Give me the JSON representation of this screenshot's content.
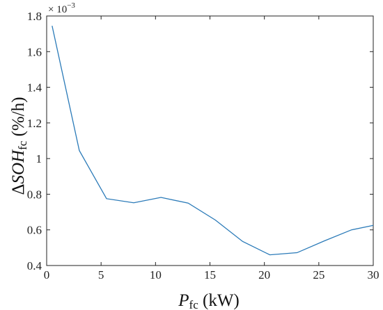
{
  "chart_data": {
    "type": "line",
    "title": "",
    "xlabel": {
      "main": "P",
      "sub": "fc",
      "unit": " (kW)"
    },
    "ylabel": {
      "prefix": "Δ",
      "main": "SOH",
      "sub": "fc",
      "unit": " (%/h)"
    },
    "y_multiplier": {
      "base": "× 10",
      "exponent": "−3"
    },
    "xlim": [
      0,
      30
    ],
    "ylim": [
      0.4,
      1.8
    ],
    "x_ticks": [
      0,
      5,
      10,
      15,
      20,
      25,
      30
    ],
    "y_ticks": [
      0.4,
      0.6,
      0.8,
      1.0,
      1.2,
      1.4,
      1.6,
      1.8
    ],
    "x_tick_labels": [
      "0",
      "5",
      "10",
      "15",
      "20",
      "25",
      "30"
    ],
    "y_tick_labels": [
      "0.4",
      "0.6",
      "0.8",
      "1",
      "1.2",
      "1.4",
      "1.6",
      "1.8"
    ],
    "grid": false,
    "line_color": "#2a7ab8",
    "series": [
      {
        "x": [
          0.5,
          3,
          5.5,
          8,
          10.5,
          13,
          15.5,
          18,
          20.5,
          23,
          25.5,
          28,
          30
        ],
        "values": [
          1.745,
          1.045,
          0.775,
          0.752,
          0.782,
          0.75,
          0.655,
          0.535,
          0.46,
          0.472,
          0.538,
          0.6,
          0.625
        ]
      }
    ]
  }
}
